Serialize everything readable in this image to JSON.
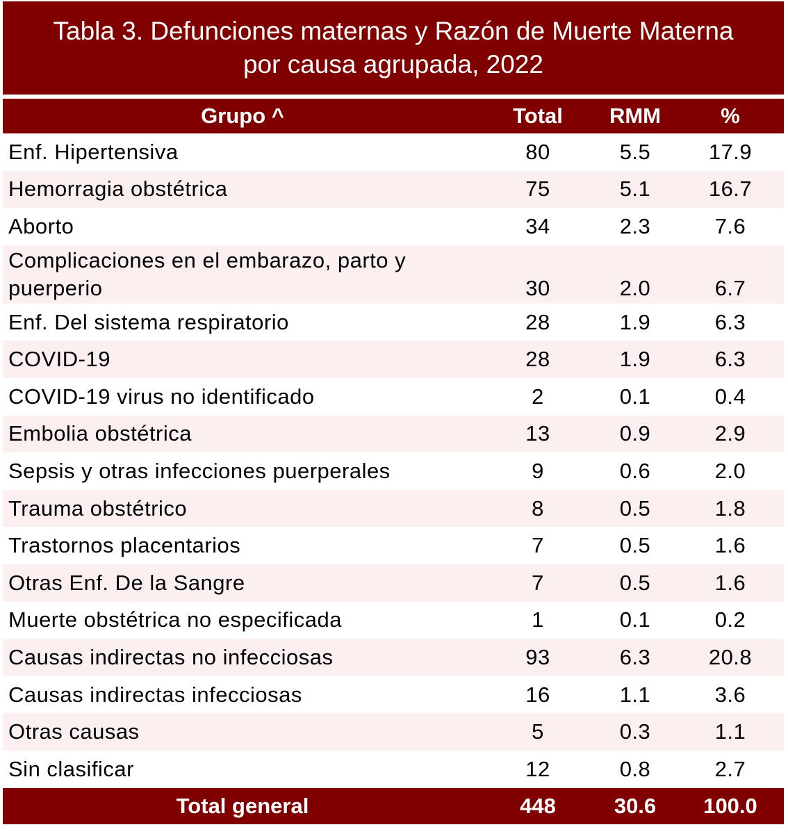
{
  "title": {
    "line1": "Tabla 3. Defunciones maternas y Razón de Muerte Materna",
    "line2": "por causa agrupada, 2022"
  },
  "colors": {
    "header_bg": "#800000",
    "stripe": "#fcefef"
  },
  "chart_data": {
    "type": "table",
    "columns": [
      "Grupo ^",
      "Total",
      "RMM",
      "%"
    ],
    "rows": [
      {
        "grupo": "Enf. Hipertensiva",
        "total": "80",
        "rmm": "5.5",
        "pct": "17.9"
      },
      {
        "grupo": "Hemorragia obstétrica",
        "total": "75",
        "rmm": "5.1",
        "pct": "16.7"
      },
      {
        "grupo": "Aborto",
        "total": "34",
        "rmm": "2.3",
        "pct": "7.6"
      },
      {
        "grupo": "Complicaciones en el embarazo, parto y puerperio",
        "total": "30",
        "rmm": "2.0",
        "pct": "6.7"
      },
      {
        "grupo": "Enf. Del sistema respiratorio",
        "total": "28",
        "rmm": "1.9",
        "pct": "6.3"
      },
      {
        "grupo": "COVID-19",
        "total": "28",
        "rmm": "1.9",
        "pct": "6.3"
      },
      {
        "grupo": "COVID-19 virus no identificado",
        "total": "2",
        "rmm": "0.1",
        "pct": "0.4"
      },
      {
        "grupo": "Embolia obstétrica",
        "total": "13",
        "rmm": "0.9",
        "pct": "2.9"
      },
      {
        "grupo": "Sepsis y otras infecciones puerperales",
        "total": "9",
        "rmm": "0.6",
        "pct": "2.0"
      },
      {
        "grupo": "Trauma obstétrico",
        "total": "8",
        "rmm": "0.5",
        "pct": "1.8"
      },
      {
        "grupo": "Trastornos placentarios",
        "total": "7",
        "rmm": "0.5",
        "pct": "1.6"
      },
      {
        "grupo": "Otras Enf. De la Sangre",
        "total": "7",
        "rmm": "0.5",
        "pct": "1.6"
      },
      {
        "grupo": "Muerte obstétrica no especificada",
        "total": "1",
        "rmm": "0.1",
        "pct": "0.2"
      },
      {
        "grupo": "Causas indirectas no infecciosas",
        "total": "93",
        "rmm": "6.3",
        "pct": "20.8"
      },
      {
        "grupo": "Causas indirectas infecciosas",
        "total": "16",
        "rmm": "1.1",
        "pct": "3.6"
      },
      {
        "grupo": "Otras causas",
        "total": "5",
        "rmm": "0.3",
        "pct": "1.1"
      },
      {
        "grupo": "Sin clasificar",
        "total": "12",
        "rmm": "0.8",
        "pct": "2.7"
      }
    ],
    "total_row": {
      "grupo": "Total general",
      "total": "448",
      "rmm": "30.6",
      "pct": "100.0"
    }
  }
}
